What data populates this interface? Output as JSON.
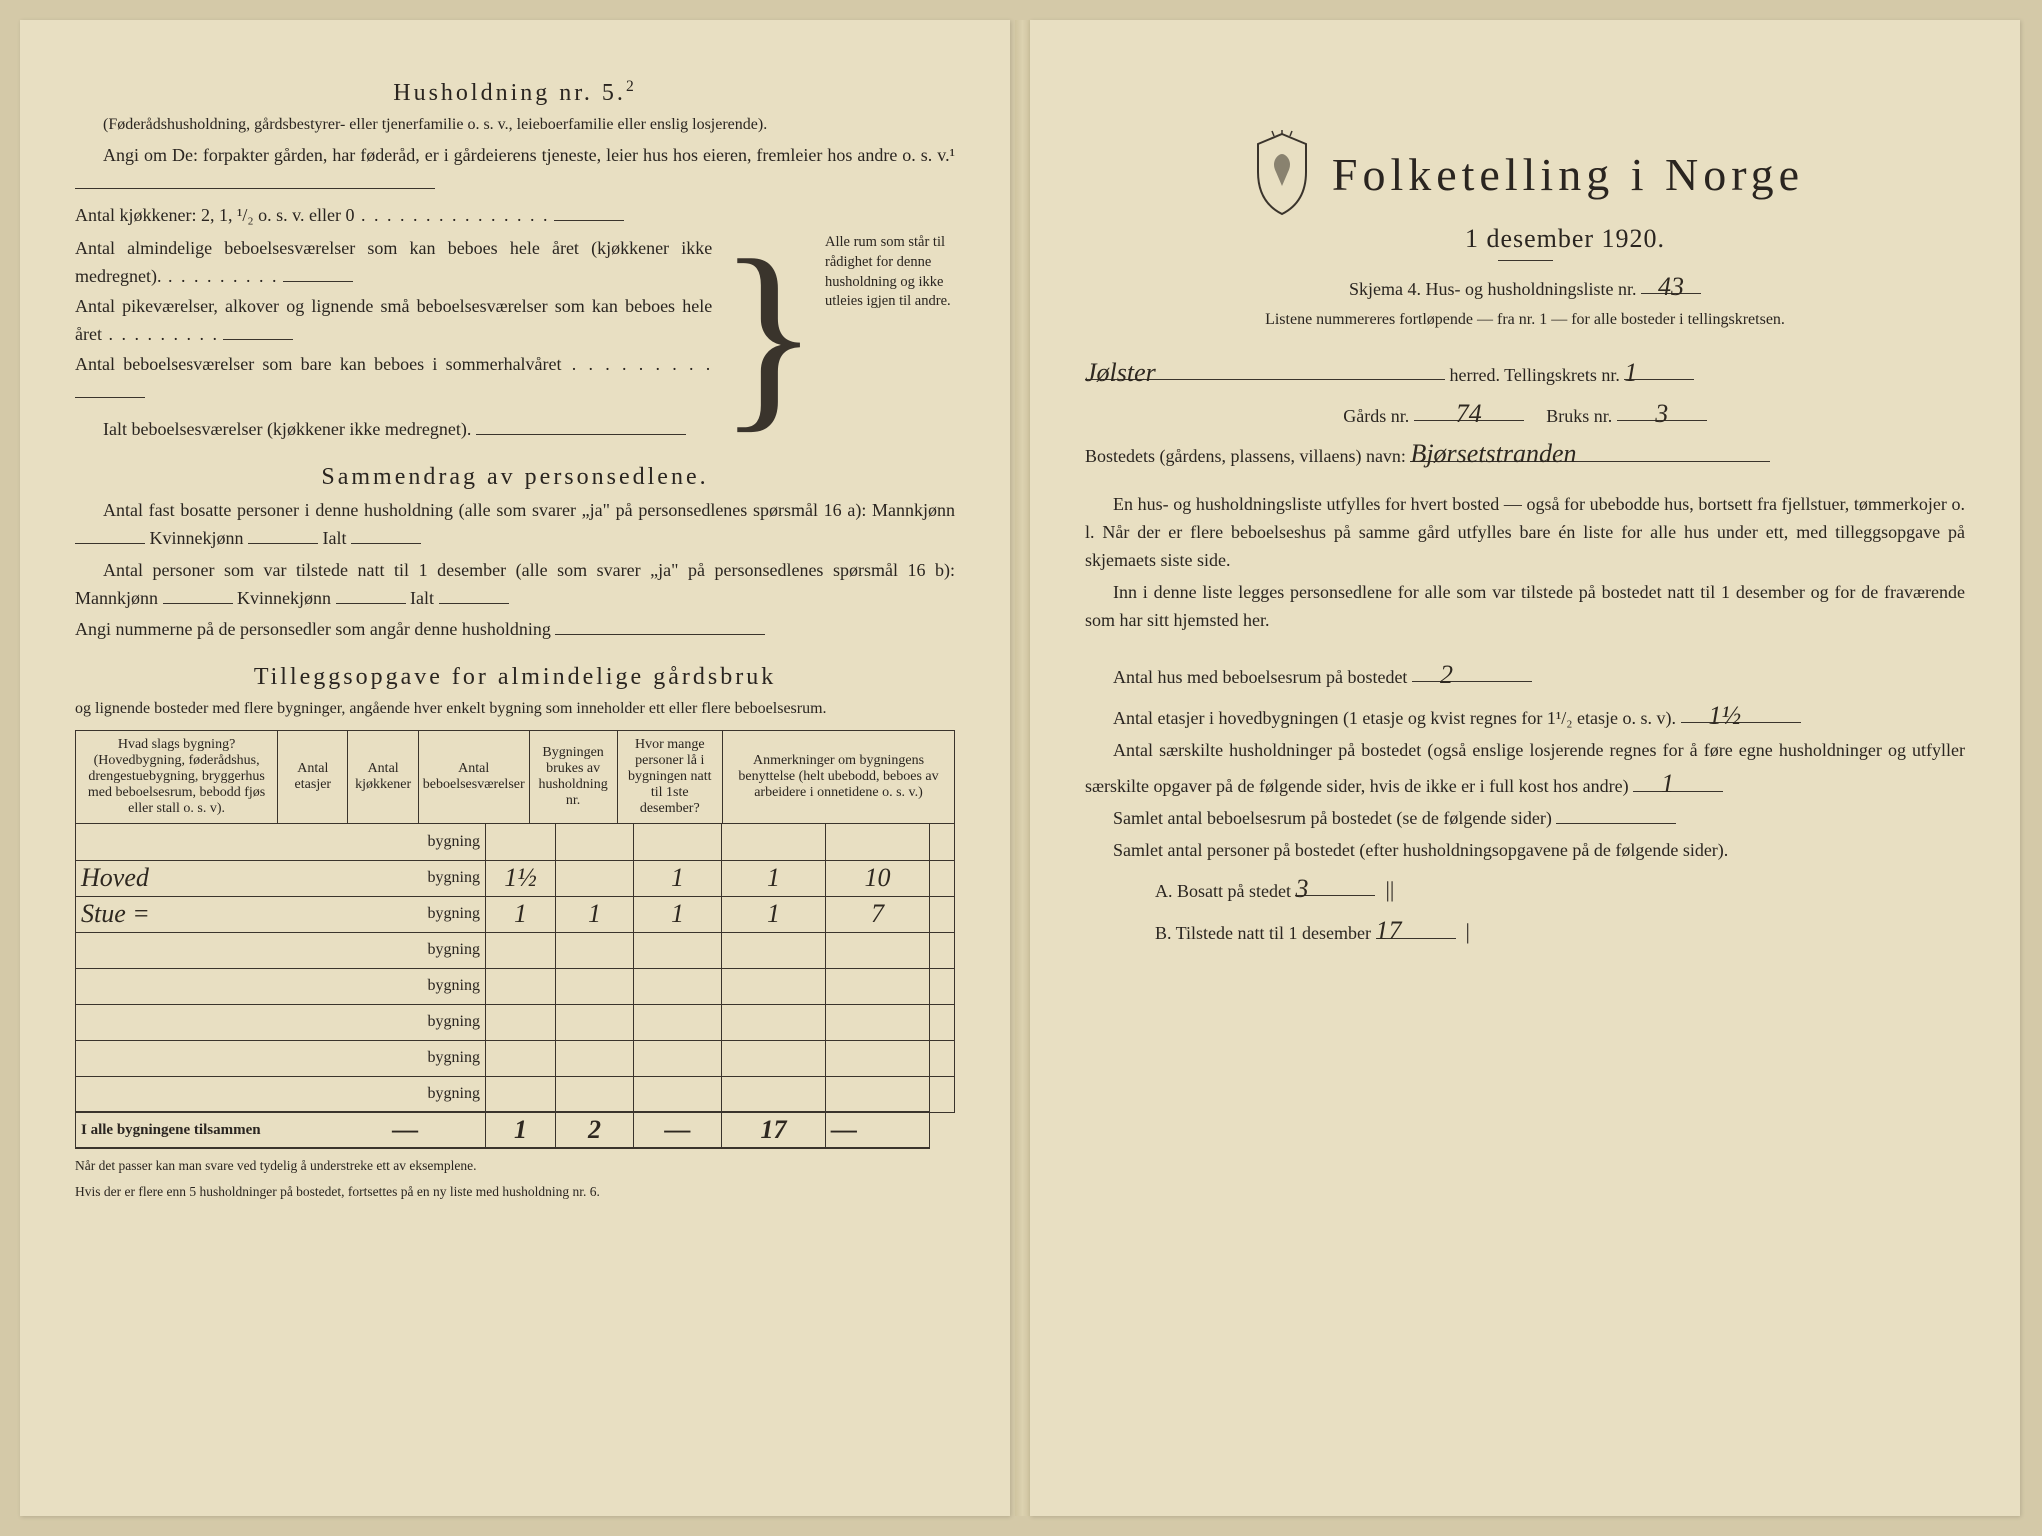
{
  "left": {
    "h5_title": "Husholdning nr. 5.",
    "h5_sup": "2",
    "h5_sub": "(Føderådshusholdning, gårdsbestyrer- eller tjenerfamilie o. s. v., leieboerfamilie eller enslig losjerende).",
    "h5_p1": "Angi om De:  forpakter gården, har føderåd, er i gårdeierens tjeneste, leier hus hos eieren, fremleier hos andre o. s. v.¹",
    "kitch_line": "Antal kjøkkener: 2, 1, ¹/₂ o. s. v. eller 0",
    "brace_lines": [
      "Antal almindelige beboelsesværelser som kan beboes hele året (kjøkkener ikke medregnet).",
      "Antal pikeværelser, alkover og lignende små beboelsesværelser som kan beboes hele året",
      "Antal beboelsesværelser som bare kan beboes i sommerhalvåret"
    ],
    "brace_right": "Alle rum som står til rådighet for denne husholdning og ikke utleies igjen til andre.",
    "ialt_line": "Ialt beboelsesværelser  (kjøkkener ikke medregnet).",
    "sd_title": "Sammendrag av personsedlene.",
    "sd_p1a": "Antal fast bosatte personer i denne husholdning (alle som svarer „ja\" på personsedlenes spørsmål 16 a): Mannkjønn",
    "sd_kv": "Kvinnekjønn",
    "sd_ialt": "Ialt",
    "sd_p2a": "Antal personer som var tilstede natt til 1 desember (alle som svarer „ja\" på personsedlenes spørsmål 16 b): Mannkjønn",
    "sd_p3": "Angi nummerne på de personsedler som angår denne husholdning",
    "tg_title": "Tilleggsopgave for almindelige gårdsbruk",
    "tg_sub": "og lignende bosteder med flere bygninger, angående hver enkelt bygning som inneholder ett eller flere beboelsesrum.",
    "headers": [
      "Hvad slags bygning?\n(Hovedbygning, føderådshus, drengestuebygning, bryggerhus med beboelsesrum, bebodd fjøs eller stall o. s. v).",
      "Antal etasjer",
      "Antal kjøkkener",
      "Antal beboelsesværelser",
      "Bygningen brukes av husholdning nr.",
      "Hvor mange personer lå i bygningen natt til 1ste desember?",
      "Anmerkninger om bygningens benyttelse (helt ubebodd, beboes av arbeidere i onnetidene o. s. v.)"
    ],
    "byg_label": "bygning",
    "rows": [
      {
        "name": "",
        "et": "",
        "kj": "",
        "bv": "",
        "hn": "",
        "pl": "",
        "an": ""
      },
      {
        "name": "Hoved",
        "et": "1½",
        "kj": "",
        "bv": "1",
        "hn": "1",
        "pl": "10",
        "an": ""
      },
      {
        "name": "Stue =",
        "et": "1",
        "kj": "1",
        "bv": "1",
        "hn": "1",
        "pl": "7",
        "an": ""
      },
      {
        "name": "",
        "et": "",
        "kj": "",
        "bv": "",
        "hn": "",
        "pl": "",
        "an": ""
      },
      {
        "name": "",
        "et": "",
        "kj": "",
        "bv": "",
        "hn": "",
        "pl": "",
        "an": ""
      },
      {
        "name": "",
        "et": "",
        "kj": "",
        "bv": "",
        "hn": "",
        "pl": "",
        "an": ""
      },
      {
        "name": "",
        "et": "",
        "kj": "",
        "bv": "",
        "hn": "",
        "pl": "",
        "an": ""
      },
      {
        "name": "",
        "et": "",
        "kj": "",
        "bv": "",
        "hn": "",
        "pl": "",
        "an": ""
      }
    ],
    "sum_label": "I alle bygningene tilsammen",
    "sum": {
      "et": "—",
      "kj": "1",
      "bv": "2",
      "hn": "—",
      "pl": "17",
      "an": "—"
    },
    "fn1": "Når det passer kan man svare ved tydelig å understreke ett av eksemplene.",
    "fn2": "Hvis der er flere enn 5 husholdninger på bostedet, fortsettes på en ny liste med husholdning nr. 6."
  },
  "right": {
    "main_title": "Folketelling i Norge",
    "date_line": "1 desember 1920.",
    "skj_line_a": "Skjema 4.  Hus- og husholdningsliste nr.",
    "skj_nr": "43",
    "skj_sub": "Listene nummereres fortløpende — fra nr. 1 — for alle bosteder i tellingskretsen.",
    "herred_val": "Jølster",
    "herred_lbl": "herred.   Tellingskrets nr.",
    "tk_nr": "1",
    "gards_lbl": "Gårds nr.",
    "gards_nr": "74",
    "bruks_lbl": "Bruks nr.",
    "bruks_nr": "3",
    "bost_lbl": "Bostedets (gårdens, plassens, villaens) navn:",
    "bost_val": "Bjørsetstranden",
    "p1": "En hus- og husholdningsliste utfylles for hvert bosted — også for ubebodde hus, bortsett fra fjellstuer, tømmerkojer o. l.  Når der er flere beboelseshus på samme gård utfylles bare én liste for alle hus under ett, med tilleggsopgave på skjemaets siste side.",
    "p2": "Inn i denne liste legges personsedlene for alle som var tilstede på bostedet natt til 1 desember og for de fraværende som har sitt hjemsted her.",
    "p3_lbl": "Antal hus med beboelsesrum på bostedet",
    "p3_val": "2",
    "p4_a": "Antal etasjer i hovedbygningen (1 etasje og kvist regnes for 1¹/₂ etasje o. s. v).",
    "p4_val": "1½",
    "p5": "Antal særskilte husholdninger på bostedet (også enslige losjerende regnes for å føre egne husholdninger og utfyller særskilte opgaver på de følgende sider, hvis de ikke er i full kost hos andre)",
    "p5_val": "1",
    "p6": "Samlet antal beboelsesrum på bostedet (se de følgende sider)",
    "p7": "Samlet antal personer på bostedet (efter husholdningsopgavene på de følgende sider).",
    "pA_lbl": "A.  Bosatt på stedet",
    "pA_val": "3",
    "pB_lbl": "B.  Tilstede natt til 1 desember",
    "pB_val": "17"
  }
}
